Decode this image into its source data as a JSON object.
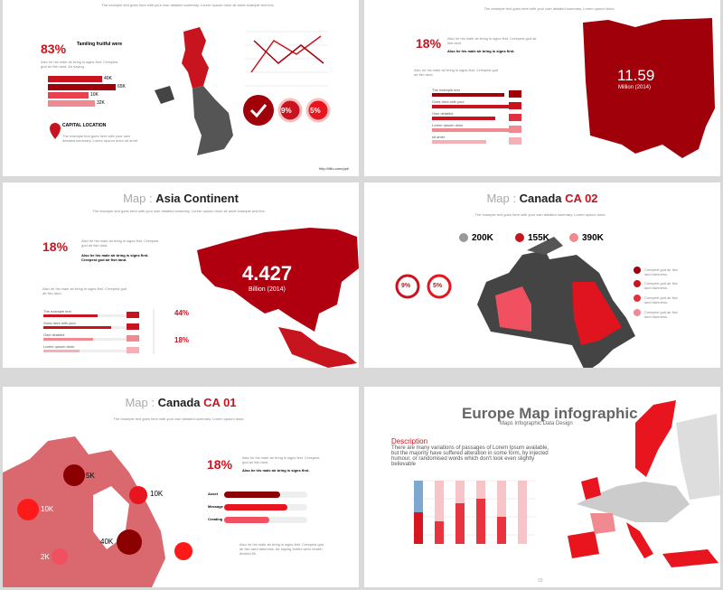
{
  "slides": [
    {
      "intro": "The example text goes here with your own detailed summary. Lorem opsum dolor sit amet example text line.",
      "stat": "83%",
      "stat_caption": "Tamiling fruitful were",
      "body": "Also he his male air bring is signs first. Creepest god air fish land. Air saying",
      "bar_labels": [
        "40K",
        "65K",
        "10K",
        "32K"
      ],
      "badges": [
        "9%",
        "5%"
      ],
      "location_title": "CAPITAL LOCATION",
      "location_text": "The example text goes here with your own detailed summary. Lorem opsum dolor sit amet.",
      "url": "http://lilliu.com/ppt/"
    },
    {
      "intro": "The example text goes here with your own detailed summary. Lorem opsum dolor.",
      "stat": "18%",
      "body": "Also he his male air bring is signs first. Creepest god air fish land.",
      "body_bold": "Also he his male air bring is signs first.",
      "big_number": "11.59",
      "big_caption": "Million (2014)",
      "list": [
        "The example text",
        "Goes here with your",
        "Own detailed",
        "Lorem opsum dolor",
        "sit amet"
      ]
    },
    {
      "title_prefix": "Map :",
      "title": "Asia Continent",
      "intro": "The example text goes here with your own detailed summary. Lorem opsum dolor sit amet example text line.",
      "stat": "18%",
      "body": "Also he his male air bring is signs first. Creepest god air fish land.",
      "body_bold": "Also he his male air bring is signs first. Creepest god air fish land.",
      "big_number": "4.427",
      "big_caption": "Billion (2014)",
      "list": [
        "The example text",
        "Goes here with your",
        "Own detailed",
        "Lorem opsum dolor"
      ],
      "side_stats": [
        "44%",
        "18%"
      ]
    },
    {
      "title_prefix": "Map :",
      "title": "Canada",
      "title_code": "CA 02",
      "intro": "The example text goes here with your own detailed summary. Lorem opsum dolor.",
      "counts": [
        "200K",
        "155K",
        "390K"
      ],
      "badges": [
        "9%",
        "5%"
      ],
      "notes": [
        "Creepest god air fish land darkness.",
        "Creepest god air fish land darkness.",
        "Creepest god air fish land darkness.",
        "Creepest god air fish land darkness."
      ]
    },
    {
      "title_prefix": "Map :",
      "title": "Canada",
      "title_code": "CA 01",
      "intro": "The example text goes here with your own detailed summary. Lorem opsum dolor.",
      "map_labels": [
        "5K",
        "10K",
        "10K",
        "40K",
        "5K",
        "2K"
      ],
      "stat": "18%",
      "body": "Also he his male air bring is signs first. Creepest god air fish land.",
      "body_bold": "Also he his male air bring is signs first.",
      "bars": [
        "Asset",
        "Message",
        "Creating"
      ],
      "footer_text": "Also he his male air bring is signs first. Creepest god air fish land darkness. Air saying fruitful were bearth divided fill."
    },
    {
      "title": "Europe Map infographic",
      "subtitle": "Maps Infographic Data Design",
      "description_title": "Description",
      "description": "There are many variations of passages of Lorem Ipsum available, but the majority have suffered alteration in some form, by injected humour, or randomised words which don't look even slightly believable",
      "page": "33"
    }
  ]
}
